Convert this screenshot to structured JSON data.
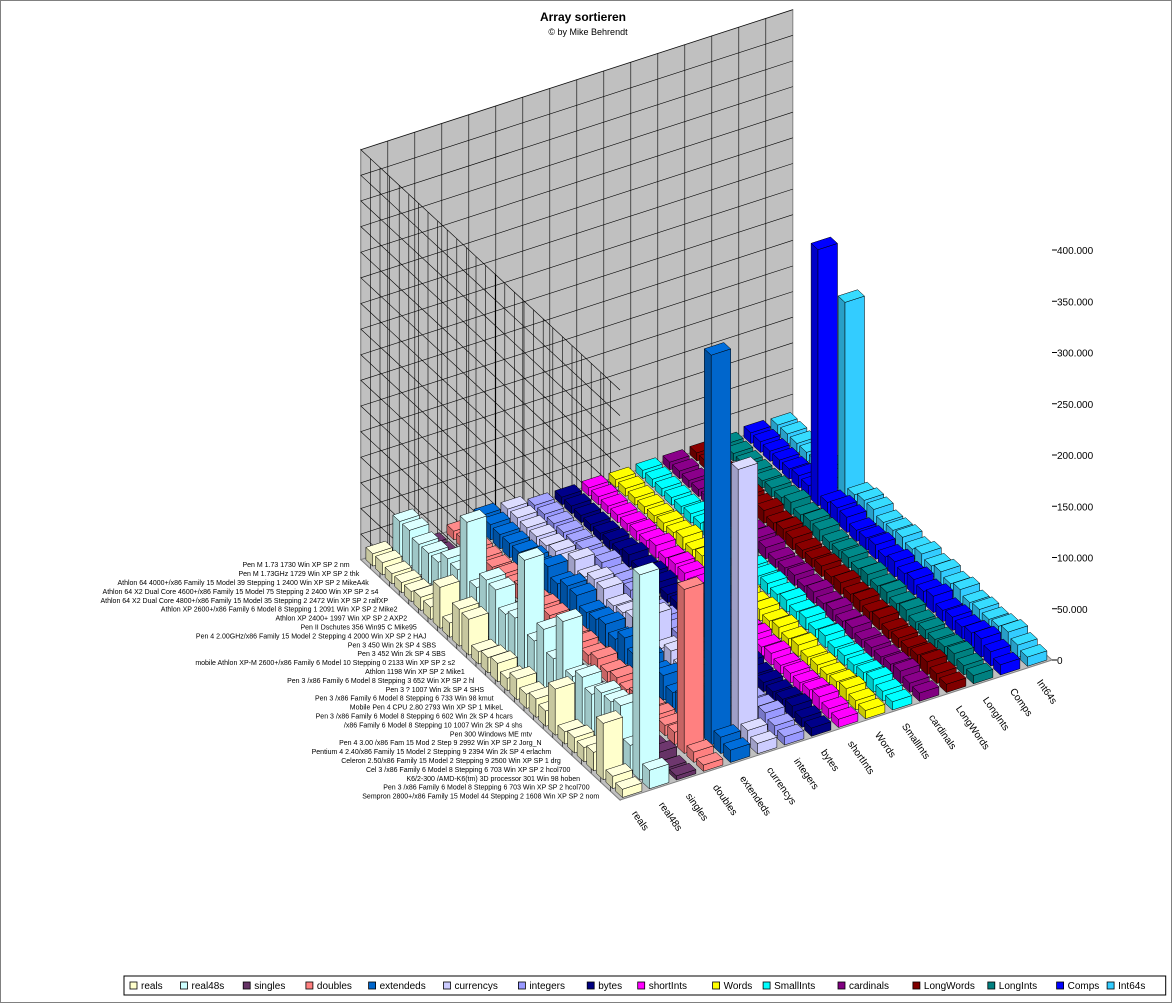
{
  "chart_data": {
    "type": "bar",
    "title": "Array sortieren",
    "subtitle": "© by Mike Behrendt",
    "zlim": [
      0,
      400000
    ],
    "z_ticks": [
      "0",
      "50.000",
      "100.000",
      "150.000",
      "200.000",
      "250.000",
      "300.000",
      "350.000",
      "400.000"
    ],
    "grid": true,
    "legend_position": "bottom",
    "systems": [
      "Sempron 2800+/x86 Family 15 Model 44 Stepping 2 1608 Win XP SP 2 nom",
      "Pen 3 /x86 Family 6 Model 8 Stepping 6 703 Win XP SP 2 hcol700",
      "K6/2-300 /AMD-K6(tm) 3D processor 301 Win 98 hoben",
      "Cel 3 /x86 Family 6 Model 8 Stepping 6 703 Win XP SP 2 hcol700",
      "Celeron 2.50/x86 Family 15 Model 2 Stepping 9 2500 Win XP SP 1 drg",
      "Pentium 4 2.40/x86 Family 15 Model 2 Stepping 9 2394 Win 2k SP 4 erlachm",
      "Pen 4 3.00 /x86 Fam 15 Mod 2 Step 9 2992 Win XP SP 2 Jorg_N",
      "Pen 300 Windows ME mtv",
      "/x86 Family 6 Model 8 Stepping 10 1007 Win 2k SP 4 shs",
      "Pen 3 /x86 Family 6 Model 8 Stepping 6 602 Win 2k SP 4 hcars",
      "Mobile Pen 4    CPU 2.80 2793 Win XP SP 1 MikeL",
      "Pen 3 /x86 Family 6 Model 8 Stepping 6 733 Win 98 kmut",
      "Pen 3 ? 1007 Win 2k SP 4 SHS",
      "Pen 3 /x86 Family 6 Model 8 Stepping 3 652 Win XP SP 2 hl",
      "Athlon 1198 Win XP SP 2 Mike1",
      "mobile Athlon XP-M 2600+/x86 Family 6 Model 10 Stepping 0 2133 Win XP SP 2 s2",
      "Pen 3 452 Win 2k SP 4 SBS",
      "Pen 3 450 Win 2k SP 4 SBS",
      "Pen 4 2.00GHz/x86 Family 15 Model 2 Stepping 4 2000 Win XP SP 2 HAJ",
      "Pen II Dschutes 356 Win95 C Mike95",
      "Athlon XP 2400+ 1997 Win XP SP 2 AXP2",
      "Athlon XP 2600+/x86 Family 6 Model 8 Stepping 1 2091 Win XP SP 2 Mike2",
      "Athlon 64 X2 Dual Core 4800+/x86 Family 15 Model 35 Stepping 2 2472 Win XP SP 2 ralfXP",
      "Athlon 64 X2 Dual Core 4600+/x86 Family 15 Model 75 Stepping 2 2400 Win XP SP 2 s4",
      "Athlon 64 4000+/x86 Family 15 Model 39 Stepping 1 2400 Win XP SP 2 MikeA4k",
      "Pen M 1.73GHz 1729 Win XP SP 2 thk",
      "Pen M 1.73 1730 Win XP SP 2 nm"
    ],
    "series": [
      {
        "name": "reals",
        "color": "#ffffcc",
        "values": [
          8000,
          12000,
          55000,
          18000,
          14000,
          15000,
          12000,
          45000,
          15000,
          18000,
          14000,
          20000,
          12000,
          18000,
          15000,
          12000,
          35000,
          36000,
          14000,
          40000,
          12000,
          13000,
          10000,
          10000,
          10000,
          12000,
          12000
        ]
      },
      {
        "name": "real48s",
        "color": "#ccffff",
        "values": [
          18000,
          200000,
          25000,
          55000,
          50000,
          50000,
          40000,
          48000,
          40000,
          85000,
          40000,
          60000,
          40000,
          110000,
          45000,
          40000,
          55000,
          56000,
          40000,
          95000,
          40000,
          42000,
          30000,
          30000,
          30000,
          35000,
          35000
        ]
      },
      {
        "name": "singles",
        "color": "#663366",
        "values": [
          4000,
          3000,
          9000,
          5000,
          4000,
          4500,
          3500,
          8000,
          4000,
          6000,
          4000,
          5000,
          3500,
          6000,
          4000,
          3500,
          8000,
          8200,
          4000,
          9000,
          3500,
          3800,
          3000,
          3000,
          3000,
          3200,
          3200
        ]
      },
      {
        "name": "doubles",
        "color": "#ff8080",
        "values": [
          6000,
          10000,
          160000,
          12000,
          10000,
          11000,
          9000,
          14000,
          10000,
          13000,
          10000,
          14000,
          9000,
          12000,
          10000,
          9000,
          13000,
          13200,
          10000,
          14000,
          9000,
          9500,
          8000,
          8000,
          8000,
          8500,
          8500
        ]
      },
      {
        "name": "extendeds",
        "color": "#0066cc",
        "values": [
          12000,
          16000,
          380000,
          22000,
          18000,
          20000,
          16000,
          24000,
          18000,
          24000,
          18000,
          26000,
          16000,
          22000,
          18000,
          16000,
          24000,
          24500,
          18000,
          26000,
          16000,
          17000,
          14000,
          14000,
          14000,
          15000,
          15000
        ]
      },
      {
        "name": "currencys",
        "color": "#ccccff",
        "values": [
          10000,
          14000,
          260000,
          20000,
          16000,
          18000,
          14000,
          22000,
          16000,
          22000,
          16000,
          40000,
          14000,
          20000,
          16000,
          14000,
          22000,
          22400,
          16000,
          24000,
          14000,
          15000,
          12000,
          12000,
          12000,
          13000,
          13000
        ]
      },
      {
        "name": "integers",
        "color": "#9999ff",
        "values": [
          8000,
          10000,
          14000,
          11000,
          9000,
          10000,
          8500,
          13000,
          9000,
          12000,
          9000,
          12000,
          8500,
          11000,
          9000,
          8500,
          12000,
          12200,
          9000,
          13000,
          8500,
          9000,
          7500,
          7500,
          7500,
          8000,
          8000
        ]
      },
      {
        "name": "bytes",
        "color": "#000080",
        "values": [
          8000,
          9000,
          12000,
          10000,
          8500,
          9000,
          8000,
          11000,
          8500,
          11000,
          8500,
          11000,
          8000,
          10000,
          8500,
          8000,
          11000,
          11200,
          8500,
          12000,
          8000,
          8500,
          7000,
          7000,
          7000,
          7500,
          7500
        ]
      },
      {
        "name": "shortInts",
        "color": "#ff00ff",
        "values": [
          8000,
          9500,
          12500,
          10500,
          9000,
          9500,
          8500,
          11500,
          9000,
          11500,
          9000,
          11500,
          8500,
          10500,
          9000,
          8500,
          11500,
          11700,
          9000,
          12500,
          8500,
          9000,
          7500,
          7500,
          7500,
          8000,
          8000
        ]
      },
      {
        "name": "Words",
        "color": "#ffff00",
        "values": [
          8000,
          9000,
          12000,
          10000,
          8500,
          9000,
          8000,
          11000,
          8500,
          11000,
          8500,
          11000,
          8000,
          10000,
          8500,
          8000,
          11000,
          11200,
          8500,
          12000,
          8000,
          8500,
          7000,
          7000,
          7000,
          7500,
          7500
        ]
      },
      {
        "name": "SmallInts",
        "color": "#00ffff",
        "values": [
          8000,
          9500,
          12500,
          10500,
          9000,
          9500,
          8500,
          11500,
          9000,
          11500,
          9000,
          11500,
          8500,
          10500,
          9000,
          8500,
          11500,
          11700,
          9000,
          12500,
          8500,
          9000,
          7500,
          7500,
          7500,
          8000,
          8000
        ]
      },
      {
        "name": "cardinals",
        "color": "#800080",
        "values": [
          8000,
          9000,
          12000,
          10000,
          8500,
          9000,
          8000,
          11000,
          8500,
          11000,
          8500,
          11000,
          8000,
          10000,
          8500,
          8000,
          11000,
          11200,
          8500,
          12000,
          8000,
          8500,
          7000,
          7000,
          7000,
          7500,
          7500
        ]
      },
      {
        "name": "LongWords",
        "color": "#800000",
        "values": [
          8000,
          9500,
          12500,
          10500,
          9000,
          9500,
          8500,
          11500,
          9000,
          11500,
          9000,
          11500,
          8500,
          10500,
          9000,
          8500,
          11500,
          11700,
          9000,
          12500,
          8500,
          9000,
          7500,
          7500,
          7500,
          8000,
          8000
        ]
      },
      {
        "name": "LongInts",
        "color": "#008080",
        "values": [
          8000,
          9000,
          12000,
          10000,
          8500,
          9000,
          8000,
          11000,
          8500,
          11000,
          8500,
          11000,
          8000,
          10000,
          8500,
          8000,
          11000,
          11200,
          8500,
          12000,
          8000,
          8500,
          7000,
          7000,
          7000,
          7500,
          7500
        ]
      },
      {
        "name": "Comps",
        "color": "#0000ff",
        "values": [
          10000,
          14000,
          18000,
          15000,
          12000,
          13000,
          11000,
          16000,
          12000,
          15000,
          12000,
          15000,
          11000,
          14000,
          12000,
          11000,
          15000,
          15400,
          12000,
          250000,
          11000,
          12000,
          10000,
          10000,
          10000,
          10500,
          10500
        ]
      },
      {
        "name": "Int64s",
        "color": "#33ccff",
        "values": [
          9000,
          12000,
          16000,
          13000,
          11000,
          12000,
          10000,
          14000,
          11000,
          14000,
          11000,
          14000,
          10000,
          13000,
          11000,
          10000,
          14000,
          14200,
          11000,
          190000,
          10000,
          11000,
          9000,
          9000,
          9000,
          9500,
          9500
        ]
      }
    ]
  }
}
